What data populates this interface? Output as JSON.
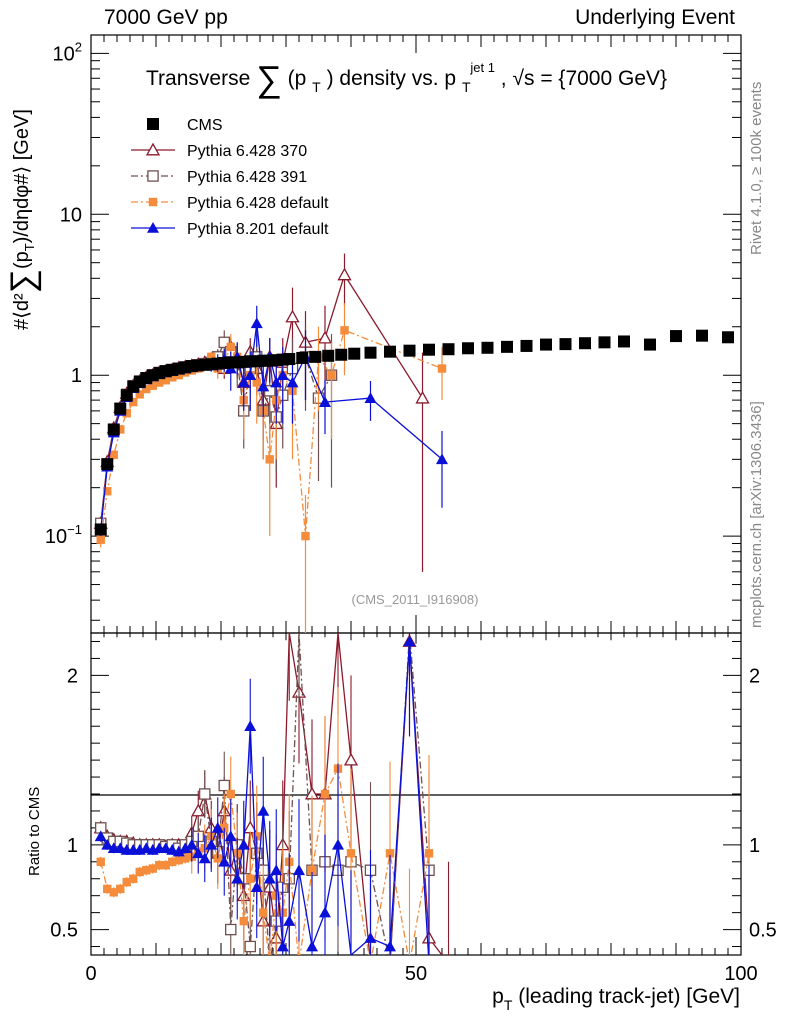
{
  "header": {
    "left": "7000 GeV pp",
    "right": "Underlying Event",
    "side_top": "Rivet 4.1.0, ≥ 100k events",
    "side_bottom": "mcplots.cern.ch [arXiv:1306.3436]"
  },
  "chart_data": {
    "type": "scatter",
    "title": "Transverse ∑(pT) density vs. pT jet 1, √s = {7000 GeV}",
    "title_parts": {
      "pre": "Transverse",
      "sum": "∑",
      "p": "(p",
      "t1": "T",
      "mid": ") density vs. p",
      "t2": "T",
      "sup": "jet 1",
      "post": ", √s = {7000 GeV}"
    },
    "analysis_tag": "(CMS_2011_I916908)",
    "xlabel": "pT (leading track-jet) [GeV]",
    "ylabel": "#⟨d²∑(pT)/dηdφ#⟩ [GeV]",
    "ratio_ylabel": "Ratio to CMS",
    "xlim": [
      0,
      100
    ],
    "ylim": [
      0.025,
      130
    ],
    "ratio_ylim": [
      0.35,
      2.25
    ],
    "x_ticks": [
      "0",
      "50",
      "100"
    ],
    "y_ticks": [
      {
        "base": "10",
        "exp": "−1"
      },
      {
        "base": "1",
        "exp": ""
      },
      {
        "base": "10",
        "exp": ""
      },
      {
        "base": "10",
        "exp": "2"
      }
    ],
    "ratio_ticks": [
      "0.5",
      "1",
      "2"
    ],
    "legend_position": "top-left",
    "series": [
      {
        "name": "CMS",
        "color": "#000000",
        "marker": "square-filled",
        "line": "none",
        "x": [
          1.5,
          2.5,
          3.5,
          4.5,
          5.5,
          6.5,
          7.5,
          8.5,
          9.5,
          10.5,
          11.5,
          12.5,
          13.5,
          14.5,
          15.5,
          16.5,
          17.5,
          18.5,
          19.5,
          20.5,
          21.5,
          22.5,
          23.5,
          24.5,
          25.5,
          26.5,
          27.5,
          28.5,
          29.5,
          30.5,
          32.5,
          34.5,
          36.5,
          38.5,
          40.5,
          43.0,
          46.0,
          49.0,
          52.0,
          55.0,
          58.0,
          61.0,
          64.0,
          67.0,
          70.0,
          73.0,
          76.0,
          79.0,
          82.0,
          86.0,
          90.0,
          94.0,
          98.0
        ],
        "y": [
          0.11,
          0.28,
          0.46,
          0.62,
          0.75,
          0.85,
          0.91,
          0.96,
          1.0,
          1.03,
          1.06,
          1.08,
          1.1,
          1.12,
          1.14,
          1.15,
          1.16,
          1.17,
          1.18,
          1.19,
          1.2,
          1.2,
          1.21,
          1.22,
          1.22,
          1.23,
          1.23,
          1.24,
          1.25,
          1.26,
          1.28,
          1.3,
          1.32,
          1.34,
          1.36,
          1.38,
          1.4,
          1.42,
          1.44,
          1.45,
          1.47,
          1.48,
          1.5,
          1.52,
          1.55,
          1.56,
          1.58,
          1.6,
          1.62,
          1.55,
          1.75,
          1.76,
          1.72
        ]
      },
      {
        "name": "Pythia 6.428 370",
        "color": "#8b1a2b",
        "marker": "triangle-open",
        "line": "solid",
        "x": [
          1.5,
          2.5,
          3.5,
          4.5,
          5.5,
          6.5,
          7.5,
          8.5,
          9.5,
          10.5,
          11.5,
          12.5,
          13.5,
          14.5,
          15.5,
          16.5,
          17.5,
          18.5,
          19.5,
          20.5,
          21.5,
          22.5,
          23.5,
          24.5,
          25.5,
          26.5,
          27.5,
          28.5,
          29.5,
          31.0,
          33.0,
          36.0,
          39.0,
          51.0
        ],
        "y": [
          0.12,
          0.29,
          0.47,
          0.63,
          0.77,
          0.86,
          0.92,
          0.97,
          1.0,
          1.04,
          1.06,
          1.08,
          1.11,
          1.13,
          1.15,
          1.17,
          1.2,
          1.25,
          1.3,
          1.1,
          1.5,
          1.2,
          0.9,
          1.4,
          1.1,
          0.7,
          1.3,
          0.5,
          1.2,
          2.3,
          1.6,
          1.7,
          4.2,
          0.72
        ],
        "yerr": [
          0.01,
          0.01,
          0.02,
          0.02,
          0.03,
          0.03,
          0.03,
          0.03,
          0.04,
          0.04,
          0.04,
          0.05,
          0.05,
          0.05,
          0.06,
          0.07,
          0.08,
          0.1,
          0.12,
          0.15,
          0.2,
          0.25,
          0.3,
          0.3,
          0.35,
          0.3,
          0.4,
          0.3,
          0.5,
          1.2,
          0.9,
          1.0,
          1.5,
          0.66
        ],
        "ratio": [
          1.1,
          1.05,
          1.03,
          1.02,
          1.02,
          1.01,
          1.0,
          1.0,
          1.0,
          1.0,
          0.99,
          1.0,
          1.0,
          0.98,
          1.07,
          1.2,
          1.3,
          1.1,
          0.95,
          1.2,
          0.85,
          1.0,
          0.7,
          1.1,
          0.95,
          0.55,
          0.75,
          0.45,
          1.0,
          2.25,
          1.9,
          1.3,
          1.3,
          2.25,
          1.5,
          0.3,
          0.3,
          2.2,
          0.45,
          0.3
        ]
      },
      {
        "name": "Pythia 6.428 391",
        "color": "#705050",
        "marker": "square-open",
        "line": "dashdot",
        "x": [
          1.5,
          2.5,
          3.5,
          4.5,
          5.5,
          6.5,
          7.5,
          8.5,
          9.5,
          10.5,
          11.5,
          12.5,
          13.5,
          14.5,
          15.5,
          16.5,
          17.5,
          18.5,
          19.5,
          20.5,
          21.5,
          22.5,
          23.5,
          24.5,
          25.5,
          26.5,
          27.5,
          28.5,
          29.5,
          31.0,
          33.0,
          35.0,
          37.0
        ],
        "y": [
          0.12,
          0.28,
          0.46,
          0.62,
          0.76,
          0.86,
          0.92,
          0.96,
          1.0,
          1.04,
          1.06,
          1.08,
          1.1,
          1.12,
          1.14,
          1.16,
          1.18,
          1.2,
          1.3,
          1.6,
          1.4,
          1.2,
          0.6,
          1.1,
          1.3,
          0.6,
          0.8,
          0.55,
          0.75,
          1.1,
          1.3,
          0.72,
          1.0
        ],
        "yerr": [
          0.01,
          0.01,
          0.02,
          0.02,
          0.03,
          0.03,
          0.03,
          0.03,
          0.04,
          0.04,
          0.04,
          0.05,
          0.05,
          0.05,
          0.06,
          0.07,
          0.08,
          0.1,
          0.15,
          0.3,
          0.3,
          0.35,
          0.25,
          0.4,
          0.5,
          0.3,
          0.4,
          0.3,
          0.4,
          0.6,
          0.7,
          0.5,
          0.8
        ],
        "ratio": [
          1.1,
          1.04,
          1.02,
          1.02,
          1.01,
          1.0,
          1.0,
          1.0,
          1.0,
          1.0,
          0.99,
          1.0,
          0.98,
          1.0,
          1.02,
          1.05,
          1.3,
          1.02,
          0.96,
          1.35,
          0.5,
          1.0,
          0.8,
          0.4,
          0.95,
          0.85,
          0.3,
          0.55,
          0.75,
          0.8,
          2.25,
          0.85,
          0.9,
          0.85,
          0.9,
          0.85,
          0.3,
          2.25,
          0.85
        ]
      },
      {
        "name": "Pythia 6.428 default",
        "color": "#f58c3c",
        "marker": "square-filled-small",
        "line": "dashdot",
        "x": [
          1.5,
          2.5,
          3.5,
          4.5,
          5.5,
          6.5,
          7.5,
          8.5,
          9.5,
          10.5,
          11.5,
          12.5,
          13.5,
          14.5,
          15.5,
          16.5,
          17.5,
          18.5,
          19.5,
          20.5,
          21.5,
          22.5,
          23.5,
          24.5,
          25.5,
          26.5,
          27.5,
          28.5,
          29.5,
          31.0,
          33.0,
          35.0,
          37.0,
          39.0,
          54.0
        ],
        "y": [
          0.095,
          0.19,
          0.32,
          0.46,
          0.58,
          0.68,
          0.76,
          0.82,
          0.86,
          0.9,
          0.93,
          0.97,
          1.0,
          1.04,
          1.07,
          1.1,
          1.15,
          1.3,
          1.1,
          1.2,
          1.5,
          1.3,
          0.7,
          1.0,
          0.9,
          0.6,
          0.3,
          0.7,
          1.0,
          0.8,
          0.1,
          1.3,
          1.0,
          1.9,
          1.1
        ],
        "yerr": [
          0.01,
          0.01,
          0.02,
          0.02,
          0.03,
          0.03,
          0.03,
          0.03,
          0.04,
          0.04,
          0.04,
          0.05,
          0.05,
          0.05,
          0.06,
          0.07,
          0.08,
          0.1,
          0.15,
          0.2,
          0.3,
          0.3,
          0.3,
          0.4,
          0.4,
          0.3,
          0.2,
          0.4,
          0.5,
          0.5,
          0.08,
          0.7,
          0.6,
          0.9,
          0.4
        ],
        "ratio": [
          0.9,
          0.74,
          0.72,
          0.74,
          0.78,
          0.8,
          0.84,
          0.85,
          0.86,
          0.88,
          0.88,
          0.9,
          0.91,
          0.92,
          0.93,
          0.96,
          0.98,
          1.05,
          0.92,
          1.1,
          1.3,
          0.95,
          0.55,
          0.8,
          1.05,
          0.6,
          0.3,
          0.7,
          0.6,
          0.9,
          0.3,
          0.85,
          1.3,
          1.45,
          0.95,
          0.3,
          0.95,
          0.3,
          0.95
        ]
      },
      {
        "name": "Pythia 8.201 default",
        "color": "#0a10d8",
        "marker": "triangle-filled",
        "line": "solid",
        "x": [
          1.5,
          2.5,
          3.5,
          4.5,
          5.5,
          6.5,
          7.5,
          8.5,
          9.5,
          10.5,
          11.5,
          12.5,
          13.5,
          14.5,
          15.5,
          16.5,
          17.5,
          18.5,
          19.5,
          20.5,
          21.5,
          22.5,
          23.5,
          24.5,
          25.5,
          26.5,
          27.5,
          28.5,
          29.5,
          31.0,
          33.0,
          36.0,
          43.0,
          54.0
        ],
        "y": [
          0.11,
          0.27,
          0.44,
          0.6,
          0.73,
          0.83,
          0.89,
          0.94,
          0.98,
          1.02,
          1.04,
          1.06,
          1.08,
          1.1,
          1.12,
          1.14,
          1.15,
          1.15,
          1.2,
          1.25,
          1.1,
          1.3,
          0.9,
          1.0,
          2.1,
          0.85,
          1.3,
          0.9,
          1.0,
          0.9,
          1.3,
          0.68,
          0.72,
          0.3
        ],
        "yerr": [
          0.01,
          0.01,
          0.02,
          0.02,
          0.03,
          0.03,
          0.03,
          0.03,
          0.04,
          0.04,
          0.04,
          0.05,
          0.05,
          0.05,
          0.06,
          0.07,
          0.08,
          0.1,
          0.15,
          0.2,
          0.3,
          0.3,
          0.3,
          0.4,
          0.6,
          0.3,
          0.4,
          0.4,
          0.5,
          0.4,
          0.6,
          0.25,
          0.2,
          0.15
        ],
        "ratio": [
          1.05,
          1.0,
          0.98,
          0.98,
          0.97,
          0.97,
          0.97,
          0.98,
          0.97,
          0.98,
          0.98,
          0.97,
          0.96,
          0.98,
          1.0,
          0.95,
          0.92,
          1.0,
          1.1,
          0.9,
          1.05,
          0.8,
          1.0,
          1.7,
          0.75,
          1.2,
          0.8,
          0.85,
          0.4,
          0.55,
          0.85,
          0.4,
          0.6,
          1.0,
          0.35,
          0.45,
          0.4,
          2.2,
          0.3
        ]
      }
    ]
  }
}
